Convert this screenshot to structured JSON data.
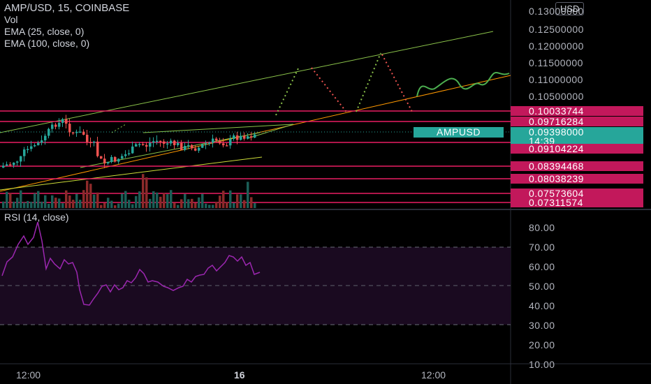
{
  "symbol_title": "AMP/USD, 15, COINBASE",
  "indicators": [
    "Vol",
    "EMA (25, close, 0)",
    "EMA (100, close, 0)"
  ],
  "rsi_title": "RSI (14, close)",
  "currency_button": "USD",
  "price_axis": [
    "0.13000000",
    "0.12500000",
    "0.12000000",
    "0.11500000",
    "0.11000000",
    "0.10500000"
  ],
  "horizontal_levels": [
    "0.10033744",
    "0.09716284",
    "0.09104224",
    "0.08394468",
    "0.08038239",
    "0.07573604",
    "0.07311574"
  ],
  "current": {
    "ticker": "AMPUSD",
    "price": "0.09398000",
    "countdown": "14:39"
  },
  "rsi_axis": [
    "80.00",
    "70.00",
    "60.00",
    "50.00",
    "40.00",
    "30.00",
    "20.00",
    "10.00"
  ],
  "time_axis": [
    "12:00",
    "16",
    "12:00"
  ],
  "colors": {
    "up": "#26a69a",
    "down": "#ef5350",
    "level": "#e91e63",
    "rsi": "#9c27b0",
    "channel": "#8bc34a",
    "ema": "#ff9800"
  }
}
